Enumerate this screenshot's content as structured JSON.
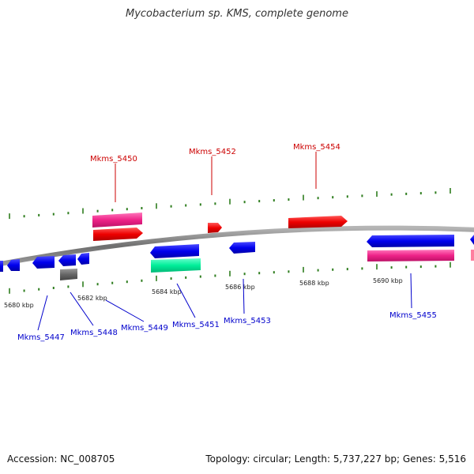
{
  "title": "Mycobacterium sp. KMS, complete genome",
  "footer": {
    "accession": "Accession: NC_008705",
    "summary": "Topology: circular; Length: 5,737,227 bp; Genes: 5,516"
  },
  "colors": {
    "backbone": "#7f7f7f",
    "forward_label": "#cc0000",
    "reverse_label": "#0000cc",
    "tick": "#2e7d1e",
    "forward_gene": "#ff0000",
    "reverse_gene": "#0000ee",
    "forward_feature": "#ff3399",
    "reverse_feature": "#00ee99",
    "other": "#666666"
  },
  "scale_labels": [
    "5680 kbp",
    "5682 kbp",
    "5684 kbp",
    "5686 kbp",
    "5688 kbp",
    "5690 kbp"
  ],
  "forward_labels": [
    "Mkms_5450",
    "Mkms_5452",
    "Mkms_5454"
  ],
  "reverse_labels": [
    "Mkms_5447",
    "Mkms_5448",
    "Mkms_5449",
    "Mkms_5451",
    "Mkms_5453",
    "Mkms_5455"
  ]
}
